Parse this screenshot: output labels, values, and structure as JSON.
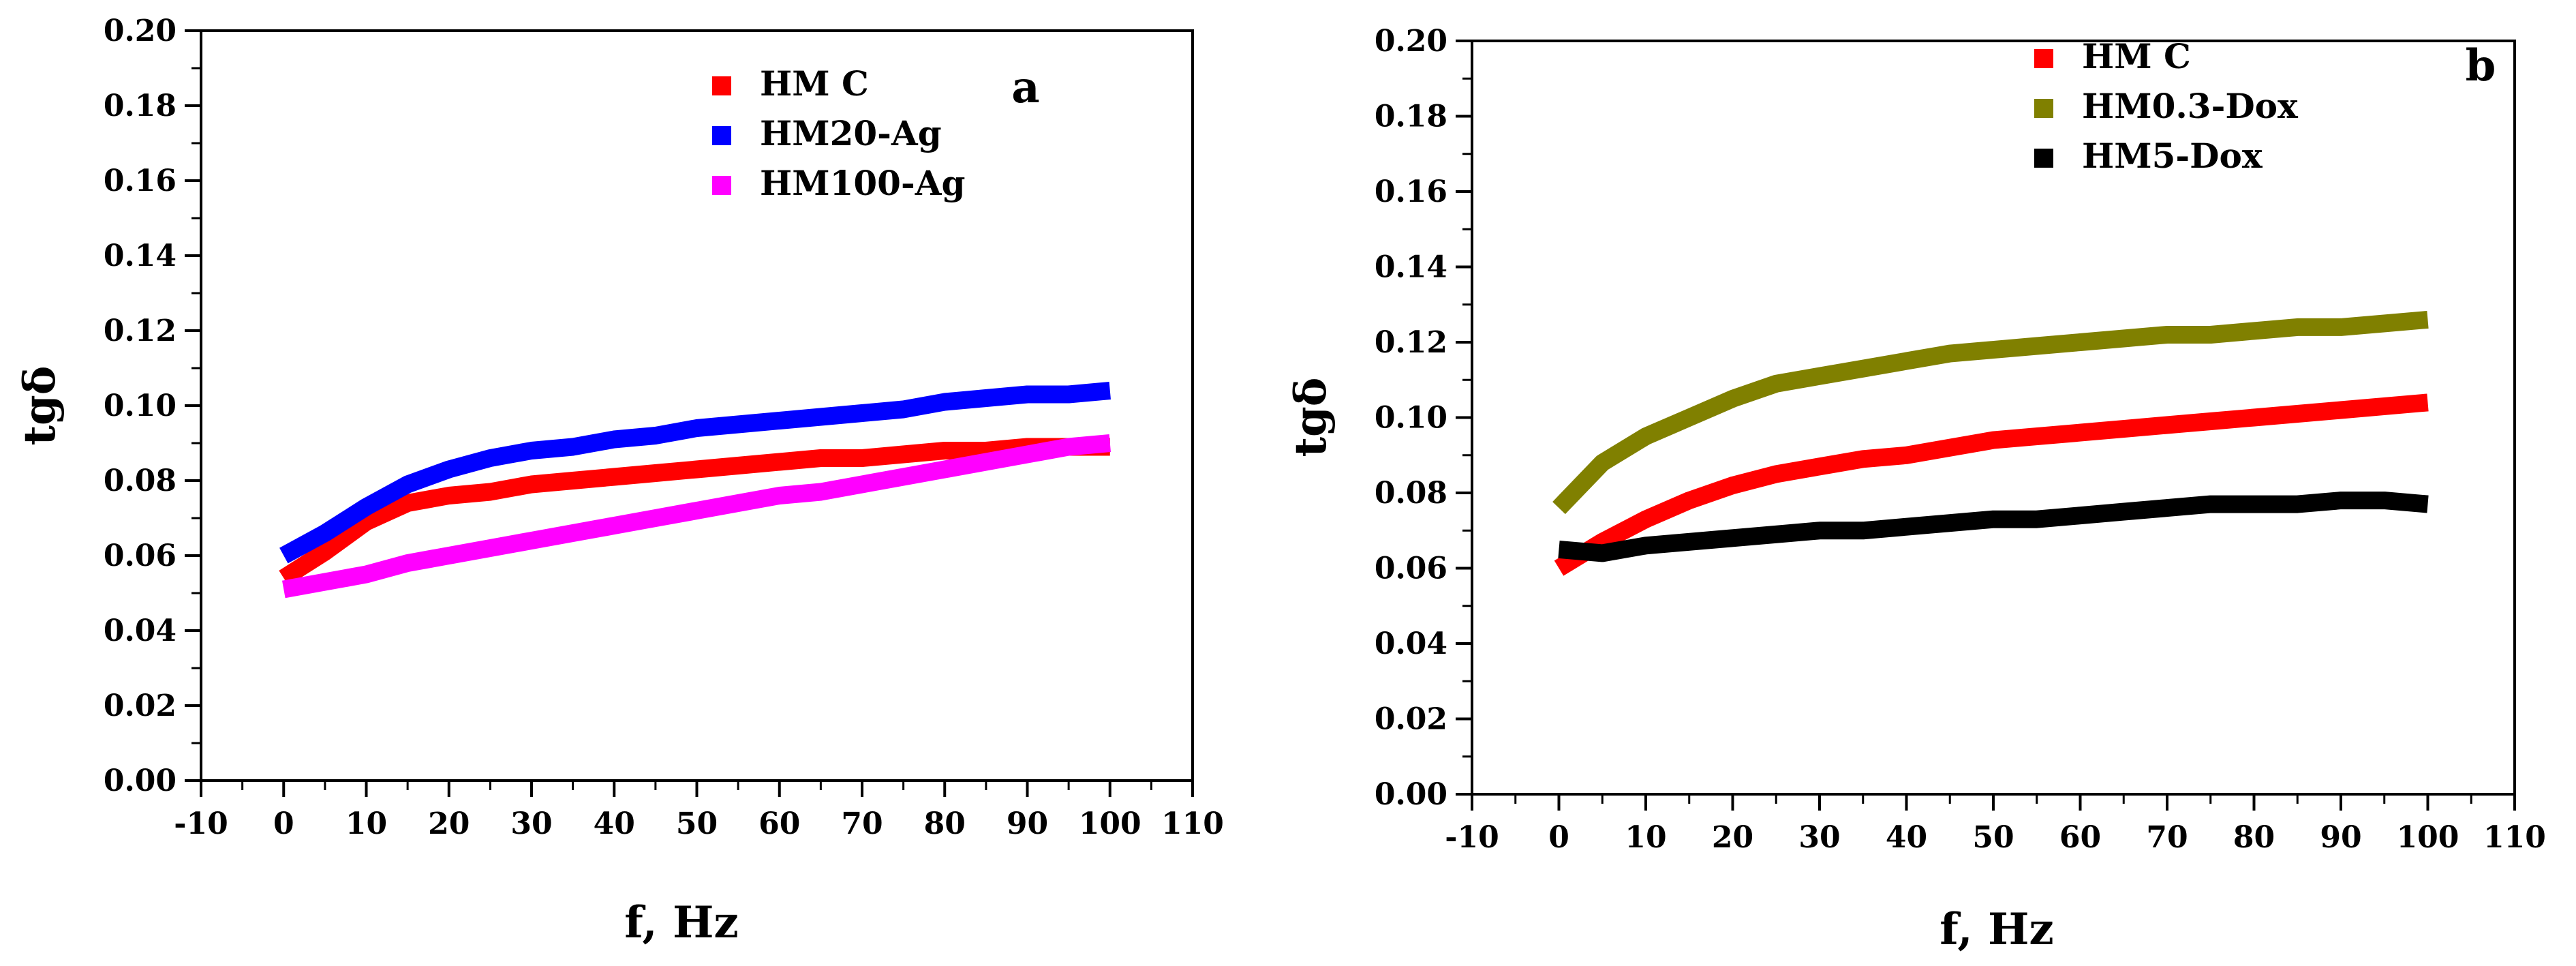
{
  "chart_data": [
    {
      "type": "line",
      "panel_label": "a",
      "xlabel": "f, Hz",
      "ylabel": "tgδ",
      "xlim": [
        -10,
        110
      ],
      "ylim": [
        0.0,
        0.2
      ],
      "xticks": [
        "-10",
        "0",
        "10",
        "20",
        "30",
        "40",
        "50",
        "60",
        "70",
        "80",
        "90",
        "100",
        "110"
      ],
      "yticks": [
        "0.00",
        "0.02",
        "0.04",
        "0.06",
        "0.08",
        "0.10",
        "0.12",
        "0.14",
        "0.16",
        "0.18",
        "0.20"
      ],
      "grid": false,
      "legend_position": "top-right",
      "x": [
        0,
        5,
        10,
        15,
        20,
        25,
        30,
        35,
        40,
        45,
        50,
        55,
        60,
        65,
        70,
        75,
        80,
        85,
        90,
        95,
        100
      ],
      "series": [
        {
          "name": "HM C",
          "color": "#ff0000",
          "values": [
            0.054,
            0.061,
            0.069,
            0.074,
            0.076,
            0.077,
            0.079,
            0.08,
            0.081,
            0.082,
            0.083,
            0.084,
            0.085,
            0.086,
            0.086,
            0.087,
            0.088,
            0.088,
            0.089,
            0.089,
            0.089
          ]
        },
        {
          "name": "HM20-Ag",
          "color": "#0000ff",
          "values": [
            0.06,
            0.066,
            0.073,
            0.079,
            0.083,
            0.086,
            0.088,
            0.089,
            0.091,
            0.092,
            0.094,
            0.095,
            0.096,
            0.097,
            0.098,
            0.099,
            0.101,
            0.102,
            0.103,
            0.103,
            0.104
          ]
        },
        {
          "name": "HM100-Ag",
          "color": "#ff00ff",
          "values": [
            0.051,
            0.053,
            0.055,
            0.058,
            0.06,
            0.062,
            0.064,
            0.066,
            0.068,
            0.07,
            0.072,
            0.074,
            0.076,
            0.077,
            0.079,
            0.081,
            0.083,
            0.085,
            0.087,
            0.089,
            0.09
          ]
        }
      ]
    },
    {
      "type": "line",
      "panel_label": "b",
      "xlabel": "f, Hz",
      "ylabel": "tgδ",
      "xlim": [
        -10,
        110
      ],
      "ylim": [
        0.0,
        0.2
      ],
      "xticks": [
        "-10",
        "0",
        "10",
        "20",
        "30",
        "40",
        "50",
        "60",
        "70",
        "80",
        "90",
        "100",
        "110"
      ],
      "yticks": [
        "0.00",
        "0.02",
        "0.04",
        "0.06",
        "0.08",
        "0.10",
        "0.12",
        "0.14",
        "0.16",
        "0.18",
        "0.20"
      ],
      "grid": false,
      "legend_position": "top-center",
      "x": [
        0,
        5,
        10,
        15,
        20,
        25,
        30,
        35,
        40,
        45,
        50,
        55,
        60,
        65,
        70,
        75,
        80,
        85,
        90,
        95,
        100
      ],
      "series": [
        {
          "name": "HM C",
          "color": "#ff0000",
          "values": [
            0.06,
            0.067,
            0.073,
            0.078,
            0.082,
            0.085,
            0.087,
            0.089,
            0.09,
            0.092,
            0.094,
            0.095,
            0.096,
            0.097,
            0.098,
            0.099,
            0.1,
            0.101,
            0.102,
            0.103,
            0.104
          ]
        },
        {
          "name": "HM0.3-Dox",
          "color": "#808000",
          "values": [
            0.076,
            0.088,
            0.095,
            0.1,
            0.105,
            0.109,
            0.111,
            0.113,
            0.115,
            0.117,
            0.118,
            0.119,
            0.12,
            0.121,
            0.122,
            0.122,
            0.123,
            0.124,
            0.124,
            0.125,
            0.126
          ]
        },
        {
          "name": "HM5-Dox",
          "color": "#000000",
          "values": [
            0.065,
            0.064,
            0.066,
            0.067,
            0.068,
            0.069,
            0.07,
            0.07,
            0.071,
            0.072,
            0.073,
            0.073,
            0.074,
            0.075,
            0.076,
            0.077,
            0.077,
            0.077,
            0.078,
            0.078,
            0.077
          ]
        }
      ]
    }
  ]
}
